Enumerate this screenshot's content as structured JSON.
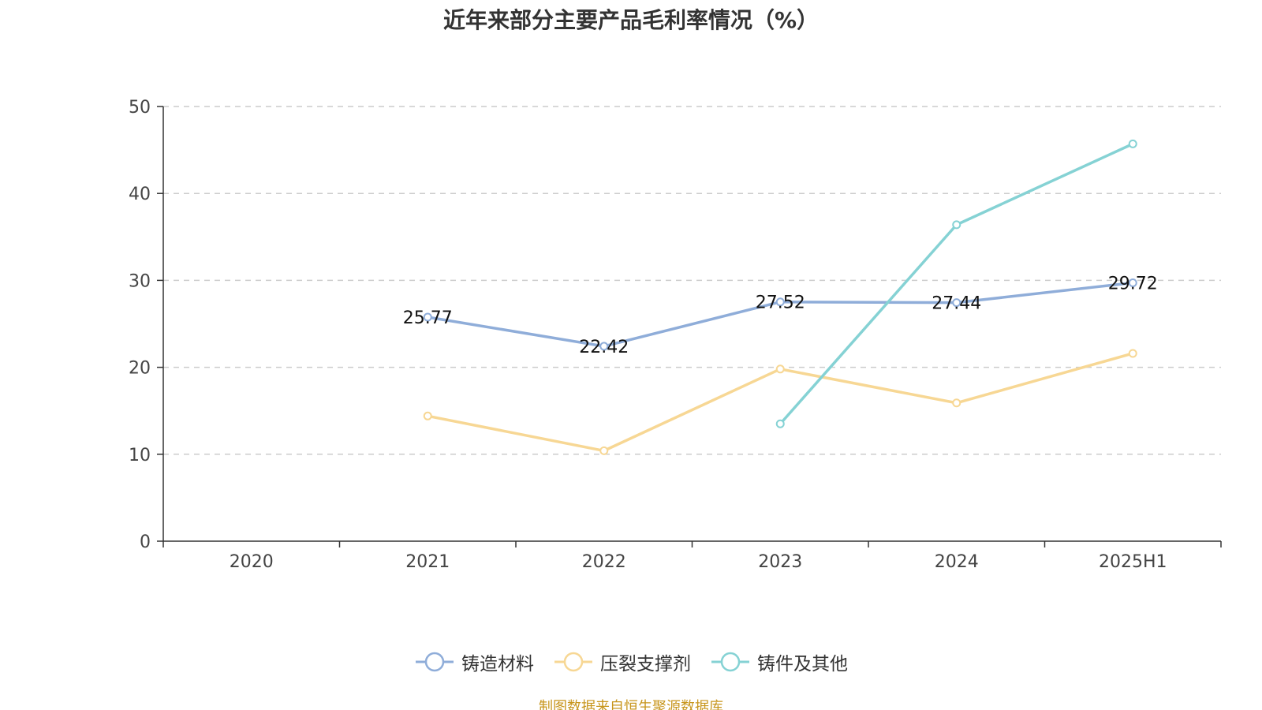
{
  "chart_data": {
    "type": "line",
    "title": "近年来部分主要产品毛利率情况（%）",
    "categories": [
      "2020",
      "2021",
      "2022",
      "2023",
      "2024",
      "2025H1"
    ],
    "ylim": [
      0,
      50
    ],
    "yticks": [
      0,
      10,
      20,
      30,
      40,
      50
    ],
    "grid": true,
    "legend_position": "bottom",
    "series": [
      {
        "name": "铸造材料",
        "color": "#8fadd9",
        "values": [
          null,
          25.77,
          22.42,
          27.52,
          27.44,
          29.72
        ],
        "labels": [
          "",
          "25.77",
          "22.42",
          "27.52",
          "27.44",
          "29.72"
        ]
      },
      {
        "name": "压裂支撑剂",
        "color": "#f7d794",
        "values": [
          null,
          14.4,
          10.4,
          19.8,
          15.9,
          21.6
        ]
      },
      {
        "name": "铸件及其他",
        "color": "#85d2d4",
        "values": [
          null,
          null,
          null,
          13.5,
          36.4,
          45.7
        ]
      }
    ]
  },
  "footer": {
    "source": "制图数据来自恒生聚源数据库"
  }
}
